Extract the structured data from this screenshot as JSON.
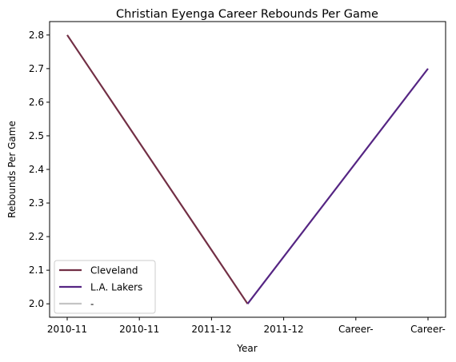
{
  "chart_data": {
    "type": "line",
    "title": "Christian Eyenga Career Rebounds Per Game",
    "xlabel": "Year",
    "ylabel": "Rebounds Per Game",
    "categories": [
      "2010-11",
      "2010-11",
      "2011-12",
      "2011-12",
      "Career-",
      "Career-"
    ],
    "ylim": [
      1.96,
      2.84
    ],
    "yticks": [
      2.0,
      2.1,
      2.2,
      2.3,
      2.4,
      2.5,
      2.6,
      2.7,
      2.8
    ],
    "legend_position": "lower-left",
    "grid": false,
    "series": [
      {
        "name": "Cleveland",
        "color": "#722f45",
        "points": [
          {
            "x": 0,
            "y": 2.8
          },
          {
            "x": 2.5,
            "y": 2.0
          }
        ]
      },
      {
        "name": "L.A. Lakers",
        "color": "#552583",
        "points": [
          {
            "x": 2.5,
            "y": 2.0
          },
          {
            "x": 5,
            "y": 2.7
          }
        ]
      },
      {
        "name": "-",
        "color": "#c4c4c4",
        "points": []
      }
    ]
  }
}
